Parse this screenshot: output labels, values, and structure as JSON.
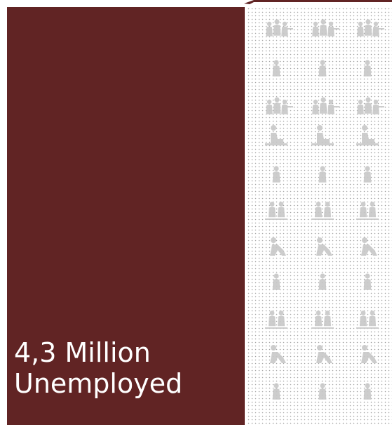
{
  "stat": {
    "line1": "4,3 Million",
    "line2": "Unemployed"
  },
  "colors": {
    "panel": "#612424",
    "figure": "#c8c8c8",
    "dots": "#9a9a9a"
  },
  "icons": {
    "figure_rows": [
      "group-of-people-icon",
      "person-icon",
      "group-of-people-icon",
      "seated-person-icon",
      "person-icon",
      "two-people-icon",
      "walking-person-icon",
      "person-icon",
      "two-people-icon",
      "walking-person-icon",
      "person-icon"
    ]
  }
}
